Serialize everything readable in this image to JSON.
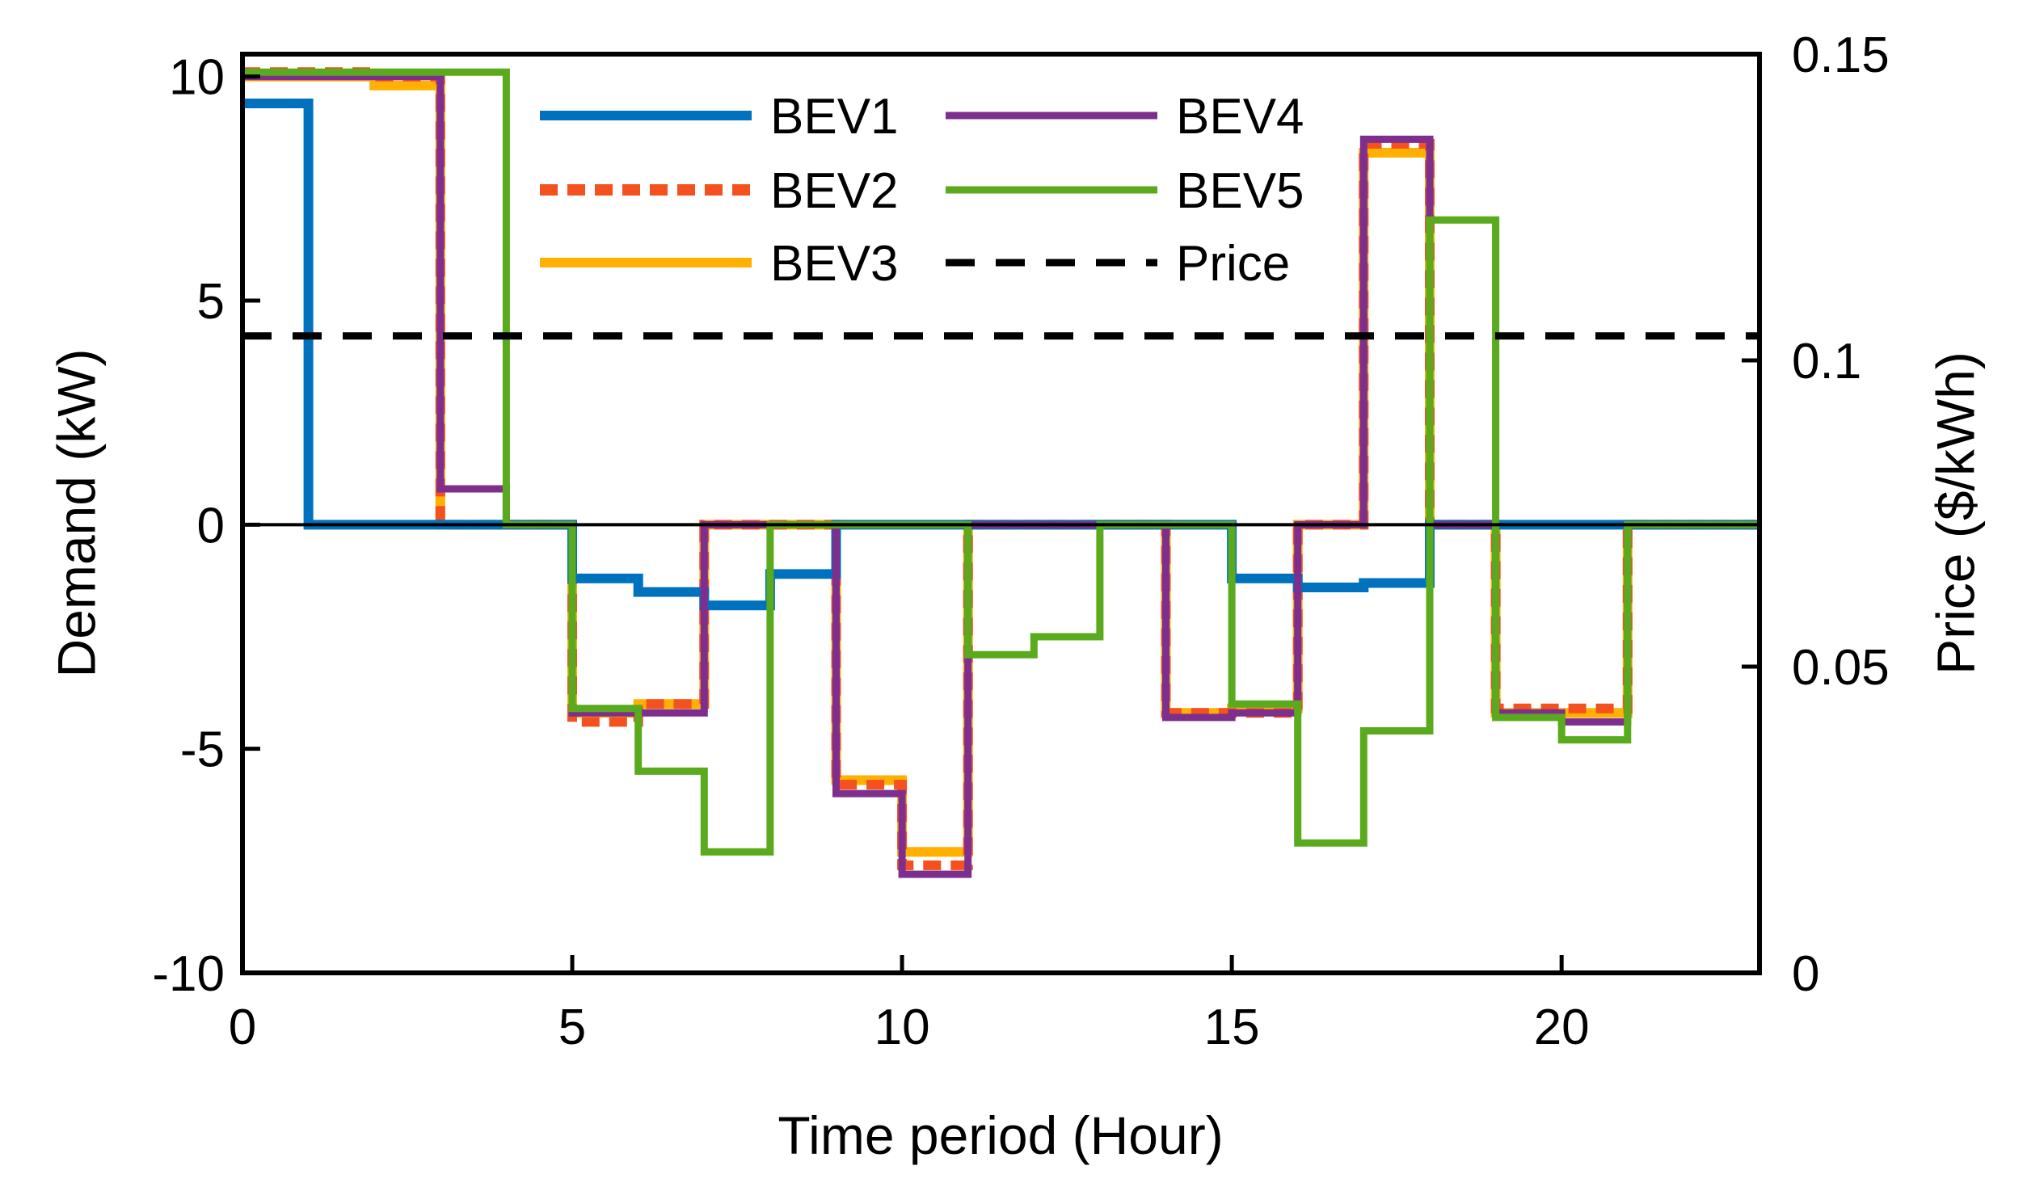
{
  "chart_data": {
    "type": "line",
    "step": true,
    "xlabel": "Time period (Hour)",
    "ylabel": "Demand (kW)",
    "y2label": "Price ($/kWh)",
    "xlim": [
      0,
      23
    ],
    "ylim": [
      -10,
      10.5
    ],
    "y2lim": [
      0,
      0.15
    ],
    "xticks": [
      0,
      5,
      10,
      15,
      20
    ],
    "xtick_labels": [
      "0",
      "5",
      "10",
      "15",
      "20"
    ],
    "yticks": [
      -10,
      -5,
      0,
      5,
      10
    ],
    "ytick_labels": [
      "-10",
      "-5",
      "0",
      "5",
      "10"
    ],
    "y2ticks": [
      0,
      0.05,
      0.1,
      0.15
    ],
    "y2tick_labels": [
      "0",
      "0.05",
      "0.1",
      "0.15"
    ],
    "x": [
      0,
      1,
      2,
      3,
      4,
      5,
      6,
      7,
      8,
      9,
      10,
      11,
      12,
      13,
      14,
      15,
      16,
      17,
      18,
      19,
      20,
      21,
      22
    ],
    "series": [
      {
        "name": "BEV1",
        "color": "#0072BD",
        "style": "solid",
        "axis": "left",
        "values": [
          9.4,
          0,
          0,
          0,
          0,
          -1.2,
          -1.5,
          -1.8,
          -1.1,
          0,
          0,
          0,
          0,
          0,
          0,
          -1.2,
          -1.4,
          -1.3,
          0,
          0,
          0,
          0,
          0
        ]
      },
      {
        "name": "BEV2",
        "color": "#F4511E",
        "style": "dotted",
        "axis": "left",
        "values": [
          10.1,
          10.1,
          10,
          0,
          0,
          -4.4,
          -4,
          0,
          0,
          -5.8,
          -7.6,
          0,
          0,
          0,
          -4.2,
          -4.2,
          0,
          8.5,
          0,
          -4.1,
          -4.1,
          0,
          0
        ]
      },
      {
        "name": "BEV3",
        "color": "#FFB000",
        "style": "solid",
        "axis": "left",
        "values": [
          10,
          10,
          9.8,
          0,
          0,
          -4.2,
          -4,
          0,
          0,
          -5.7,
          -7.3,
          0,
          0,
          0,
          -4.2,
          -4.1,
          0,
          8.3,
          0,
          -4.2,
          -4.2,
          0,
          0
        ]
      },
      {
        "name": "BEV4",
        "color": "#7E2F8E",
        "style": "solid",
        "axis": "left",
        "values": [
          10,
          10,
          10,
          0.8,
          0,
          -4.2,
          -4.2,
          0,
          0,
          -6,
          -7.8,
          0,
          0,
          0,
          -4.3,
          -4.2,
          0,
          8.6,
          0,
          -4.2,
          -4.4,
          0,
          0
        ]
      },
      {
        "name": "BEV5",
        "color": "#5AAA1E",
        "style": "solid",
        "axis": "left",
        "values": [
          10.1,
          10.1,
          10.1,
          10.1,
          0,
          -4.1,
          -5.5,
          -7.3,
          0,
          0,
          0,
          -2.9,
          -2.5,
          0,
          0,
          -4,
          -7.1,
          -4.6,
          6.8,
          -4.3,
          -4.8,
          0,
          0
        ]
      },
      {
        "name": "Price",
        "color": "#000000",
        "style": "dashed",
        "axis": "right",
        "values": [
          0.104,
          0.104,
          0.104,
          0.104,
          0.104,
          0.104,
          0.104,
          0.104,
          0.104,
          0.104,
          0.104,
          0.104,
          0.104,
          0.104,
          0.104,
          0.104,
          0.104,
          0.104,
          0.104,
          0.104,
          0.104,
          0.104,
          0.104
        ]
      }
    ],
    "legend": {
      "location": "top",
      "columns": 2
    }
  }
}
